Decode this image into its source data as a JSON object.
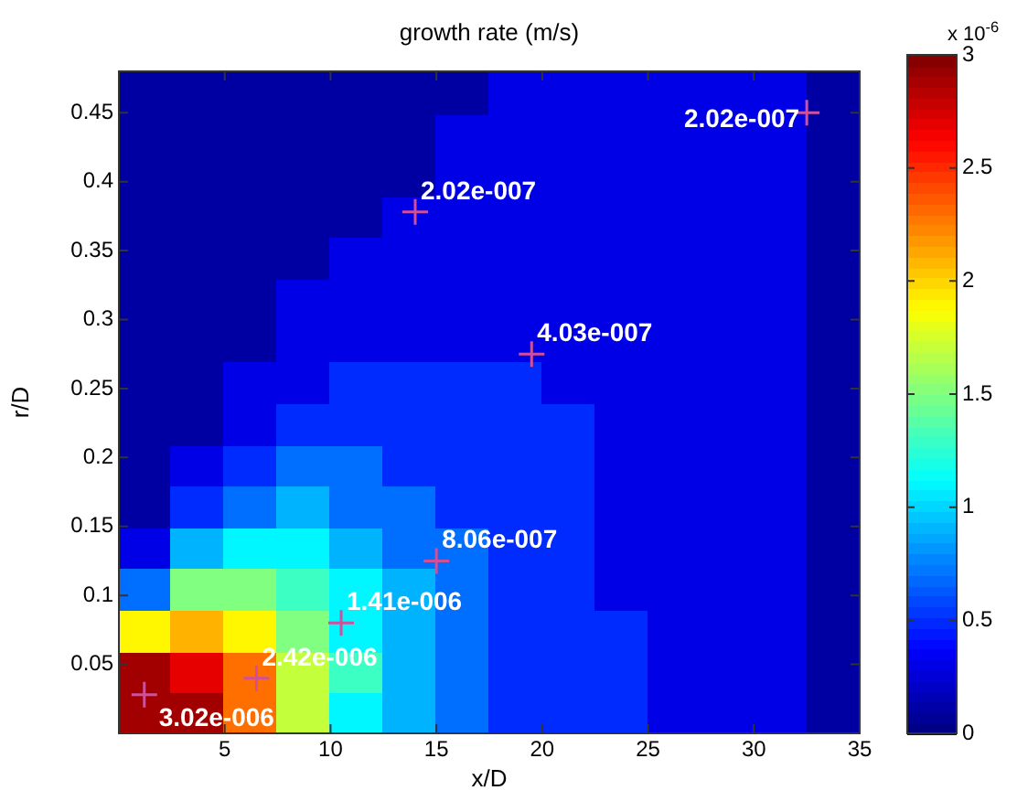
{
  "chart_data": {
    "type": "scatter",
    "title": "growth rate (m/s)",
    "xlabel": "x/D",
    "ylabel": "r/D",
    "clabel": "x 10$^{-6}$",
    "legend": false,
    "grid": false,
    "xlim": [
      0,
      35
    ],
    "xticks": [
      5,
      10,
      15,
      20,
      25,
      30,
      35
    ],
    "ylim": [
      0,
      0.48
    ],
    "yticks": [
      0.05,
      0.1,
      0.15,
      0.2,
      0.25,
      0.3,
      0.35,
      0.4,
      0.45
    ],
    "clim": [
      0,
      3
    ],
    "cticks": [
      0,
      0.5,
      1,
      1.5,
      2,
      2.5,
      3
    ],
    "series": [
      {
        "marker": "square",
        "x": [
          1.25,
          3.75,
          6.25,
          8.75,
          11.25,
          13.75,
          16.25,
          18.75,
          21.25,
          23.75,
          26.25,
          28.75,
          31.25,
          33.75,
          1.25,
          3.75,
          6.25,
          8.75,
          11.25,
          13.75,
          16.25,
          18.75,
          21.25,
          23.75,
          26.25,
          28.75,
          31.25,
          33.75,
          1.25,
          3.75,
          6.25,
          8.75,
          11.25,
          13.75,
          16.25,
          18.75,
          21.25,
          23.75,
          26.25,
          28.75,
          31.25,
          33.75,
          1.25,
          3.75,
          6.25,
          8.75,
          11.25,
          13.75,
          16.25,
          18.75,
          21.25,
          23.75,
          26.25,
          28.75,
          31.25,
          33.75,
          1.25,
          3.75,
          6.25,
          8.75,
          11.25,
          13.75,
          16.25,
          18.75,
          21.25,
          23.75,
          26.25,
          28.75,
          31.25,
          33.75,
          1.25,
          3.75,
          6.25,
          8.75,
          11.25,
          13.75,
          16.25,
          18.75,
          21.25,
          23.75,
          26.25,
          28.75,
          31.25,
          33.75,
          1.25,
          3.75,
          6.25,
          8.75,
          11.25,
          13.75,
          16.25,
          18.75,
          21.25,
          23.75,
          26.25,
          28.75,
          31.25,
          33.75,
          1.25,
          3.75,
          6.25,
          8.75,
          11.25,
          13.75,
          16.25,
          18.75,
          21.25,
          23.75,
          26.25,
          28.75,
          31.25,
          33.75,
          1.25,
          3.75,
          6.25,
          8.75,
          11.25,
          13.75,
          16.25,
          18.75,
          21.25,
          23.75,
          26.25,
          28.75,
          31.25,
          33.75,
          1.25,
          3.75,
          6.25,
          8.75,
          11.25,
          13.75,
          16.25,
          18.75,
          21.25,
          23.75,
          26.25,
          28.75,
          31.25,
          33.75,
          1.25,
          3.75,
          6.25,
          8.75,
          11.25,
          13.75,
          16.25,
          18.75,
          21.25,
          23.75,
          26.25,
          28.75,
          31.25,
          33.75,
          1.25,
          3.75,
          6.25,
          8.75,
          11.25,
          13.75,
          16.25,
          18.75,
          21.25,
          23.75,
          26.25,
          28.75,
          31.25,
          33.75,
          1.25,
          3.75,
          6.25,
          8.75,
          11.25,
          13.75,
          16.25,
          18.75,
          21.25,
          23.75,
          26.25,
          28.75,
          31.25,
          33.75,
          1.25,
          3.75,
          6.25,
          8.75,
          11.25,
          13.75,
          16.25,
          18.75,
          21.25,
          23.75,
          26.25,
          28.75,
          31.25,
          33.75,
          1.25,
          3.75,
          6.25,
          8.75,
          11.25,
          13.75,
          16.25,
          18.75,
          21.25,
          23.75,
          26.25,
          28.75,
          31.25,
          33.75,
          1.25,
          3.75,
          6.25,
          8.75,
          11.25,
          13.75,
          16.25,
          18.75,
          21.25,
          23.75,
          26.25,
          28.75,
          31.25,
          33.75
        ],
        "values": [
          0.015,
          0.015,
          0.015,
          0.015,
          0.015,
          0.015,
          0.015,
          0.015,
          0.015,
          0.015,
          0.015,
          0.015,
          0.015,
          0.015,
          0.045,
          0.045,
          0.045,
          0.045,
          0.045,
          0.045,
          0.045,
          0.045,
          0.045,
          0.045,
          0.045,
          0.045,
          0.045,
          0.045,
          0.075,
          0.075,
          0.075,
          0.075,
          0.075,
          0.075,
          0.075,
          0.075,
          0.075,
          0.075,
          0.075,
          0.075,
          0.075,
          0.075,
          0.105,
          0.105,
          0.105,
          0.105,
          0.105,
          0.105,
          0.105,
          0.105,
          0.105,
          0.105,
          0.105,
          0.105,
          0.105,
          0.105,
          0.135,
          0.135,
          0.135,
          0.135,
          0.135,
          0.135,
          0.135,
          0.135,
          0.135,
          0.135,
          0.135,
          0.135,
          0.135,
          0.135,
          0.165,
          0.165,
          0.165,
          0.165,
          0.165,
          0.165,
          0.165,
          0.165,
          0.165,
          0.165,
          0.165,
          0.165,
          0.165,
          0.165,
          0.195,
          0.195,
          0.195,
          0.195,
          0.195,
          0.195,
          0.195,
          0.195,
          0.195,
          0.195,
          0.195,
          0.195,
          0.195,
          0.195,
          0.225,
          0.225,
          0.225,
          0.225,
          0.225,
          0.225,
          0.225,
          0.225,
          0.225,
          0.225,
          0.225,
          0.225,
          0.225,
          0.225,
          0.255,
          0.255,
          0.255,
          0.255,
          0.255,
          0.255,
          0.255,
          0.255,
          0.255,
          0.255,
          0.255,
          0.255,
          0.255,
          0.255,
          0.285,
          0.285,
          0.285,
          0.285,
          0.285,
          0.285,
          0.285,
          0.285,
          0.285,
          0.285,
          0.285,
          0.285,
          0.285,
          0.285,
          0.315,
          0.315,
          0.315,
          0.315,
          0.315,
          0.315,
          0.315,
          0.315,
          0.315,
          0.315,
          0.315,
          0.315,
          0.315,
          0.315,
          0.345,
          0.345,
          0.345,
          0.345,
          0.345,
          0.345,
          0.345,
          0.345,
          0.345,
          0.345,
          0.345,
          0.345,
          0.345,
          0.345,
          0.375,
          0.375,
          0.375,
          0.375,
          0.375,
          0.375,
          0.375,
          0.375,
          0.375,
          0.375,
          0.375,
          0.375,
          0.375,
          0.375,
          0.405,
          0.405,
          0.405,
          0.405,
          0.405,
          0.405,
          0.405,
          0.405,
          0.405,
          0.405,
          0.405,
          0.405,
          0.405,
          0.405,
          0.435,
          0.435,
          0.435,
          0.435,
          0.435,
          0.435,
          0.435,
          0.435,
          0.435,
          0.435,
          0.435,
          0.435,
          0.435,
          0.435,
          0.465,
          0.465,
          0.465,
          0.465,
          0.465,
          0.465,
          0.465,
          0.465,
          0.465,
          0.465,
          0.465,
          0.465,
          0.465,
          0.465
        ],
        "cvalues": [
          2.9,
          2.9,
          2.3,
          1.7,
          1.1,
          0.9,
          0.7,
          0.5,
          0.5,
          0.5,
          0.3,
          0.3,
          0.3,
          0.1,
          2.9,
          2.7,
          2.3,
          1.7,
          1.3,
          0.9,
          0.7,
          0.5,
          0.5,
          0.5,
          0.3,
          0.3,
          0.3,
          0.1,
          1.9,
          2.1,
          1.9,
          1.5,
          1.1,
          0.9,
          0.7,
          0.5,
          0.5,
          0.5,
          0.3,
          0.3,
          0.3,
          0.1,
          0.7,
          1.5,
          1.5,
          1.3,
          1.1,
          0.9,
          0.7,
          0.5,
          0.5,
          0.3,
          0.3,
          0.3,
          0.3,
          0.1,
          0.3,
          0.9,
          1.1,
          1.1,
          0.9,
          0.7,
          0.7,
          0.5,
          0.5,
          0.3,
          0.3,
          0.3,
          0.3,
          0.1,
          0.1,
          0.5,
          0.7,
          0.9,
          0.7,
          0.7,
          0.5,
          0.5,
          0.5,
          0.3,
          0.3,
          0.3,
          0.3,
          0.1,
          0.1,
          0.3,
          0.5,
          0.7,
          0.7,
          0.5,
          0.5,
          0.5,
          0.5,
          0.3,
          0.3,
          0.3,
          0.3,
          0.1,
          0.1,
          0.1,
          0.3,
          0.5,
          0.5,
          0.5,
          0.5,
          0.5,
          0.5,
          0.3,
          0.3,
          0.3,
          0.3,
          0.1,
          0.1,
          0.1,
          0.3,
          0.3,
          0.5,
          0.5,
          0.5,
          0.5,
          0.3,
          0.3,
          0.3,
          0.3,
          0.3,
          0.1,
          0.1,
          0.1,
          0.1,
          0.3,
          0.3,
          0.3,
          0.3,
          0.3,
          0.3,
          0.3,
          0.3,
          0.3,
          0.3,
          0.1,
          0.1,
          0.1,
          0.1,
          0.3,
          0.3,
          0.3,
          0.3,
          0.3,
          0.3,
          0.3,
          0.3,
          0.3,
          0.3,
          0.1,
          0.1,
          0.1,
          0.1,
          0.1,
          0.3,
          0.3,
          0.3,
          0.3,
          0.3,
          0.3,
          0.3,
          0.3,
          0.3,
          0.1,
          0.1,
          0.1,
          0.1,
          0.1,
          0.1,
          0.3,
          0.3,
          0.3,
          0.3,
          0.3,
          0.3,
          0.3,
          0.3,
          0.1,
          0.1,
          0.1,
          0.1,
          0.1,
          0.1,
          0.1,
          0.3,
          0.3,
          0.3,
          0.3,
          0.3,
          0.3,
          0.3,
          0.1,
          0.1,
          0.1,
          0.1,
          0.1,
          0.1,
          0.1,
          0.3,
          0.3,
          0.3,
          0.3,
          0.3,
          0.3,
          0.3,
          0.1,
          0.1,
          0.1,
          0.1,
          0.1,
          0.1,
          0.1,
          0.1,
          0.3,
          0.3,
          0.3,
          0.3,
          0.3,
          0.3,
          0.1
        ],
        "colors": [
          "#a10000",
          "#a10000",
          "#ff6e00",
          "#c4ff3b",
          "#00f7ff",
          "#00b3ff",
          "#006eff",
          "#002bff",
          "#002bff",
          "#002bff",
          "#0000e6",
          "#0000e6",
          "#0000e6",
          "#0000a1",
          "#a10000",
          "#e60000",
          "#ff6e00",
          "#c4ff3b",
          "#3bffc4",
          "#00b3ff",
          "#006eff",
          "#002bff",
          "#002bff",
          "#002bff",
          "#0000e6",
          "#0000e6",
          "#0000e6",
          "#0000a1",
          "#fff700",
          "#ffb300",
          "#fff700",
          "#80ff80",
          "#00f7ff",
          "#00b3ff",
          "#006eff",
          "#002bff",
          "#002bff",
          "#002bff",
          "#0000e6",
          "#0000e6",
          "#0000e6",
          "#0000a1",
          "#006eff",
          "#80ff80",
          "#80ff80",
          "#3bffc4",
          "#00f7ff",
          "#00b3ff",
          "#006eff",
          "#002bff",
          "#002bff",
          "#0000e6",
          "#0000e6",
          "#0000e6",
          "#0000e6",
          "#0000a1",
          "#0000e6",
          "#00b3ff",
          "#00f7ff",
          "#00f7ff",
          "#00b3ff",
          "#006eff",
          "#006eff",
          "#002bff",
          "#002bff",
          "#0000e6",
          "#0000e6",
          "#0000e6",
          "#0000e6",
          "#0000a1",
          "#0000a1",
          "#002bff",
          "#006eff",
          "#00b3ff",
          "#006eff",
          "#006eff",
          "#002bff",
          "#002bff",
          "#002bff",
          "#0000e6",
          "#0000e6",
          "#0000e6",
          "#0000e6",
          "#0000a1",
          "#0000a1",
          "#0000e6",
          "#002bff",
          "#006eff",
          "#006eff",
          "#002bff",
          "#002bff",
          "#002bff",
          "#002bff",
          "#0000e6",
          "#0000e6",
          "#0000e6",
          "#0000e6",
          "#0000a1",
          "#0000a1",
          "#0000a1",
          "#0000e6",
          "#002bff",
          "#002bff",
          "#002bff",
          "#002bff",
          "#002bff",
          "#002bff",
          "#0000e6",
          "#0000e6",
          "#0000e6",
          "#0000e6",
          "#0000a1",
          "#0000a1",
          "#0000a1",
          "#0000e6",
          "#0000e6",
          "#002bff",
          "#002bff",
          "#002bff",
          "#002bff",
          "#0000e6",
          "#0000e6",
          "#0000e6",
          "#0000e6",
          "#0000e6",
          "#0000a1",
          "#0000a1",
          "#0000a1",
          "#0000a1",
          "#0000e6",
          "#0000e6",
          "#0000e6",
          "#0000e6",
          "#0000e6",
          "#0000e6",
          "#0000e6",
          "#0000e6",
          "#0000e6",
          "#0000e6",
          "#0000a1",
          "#0000a1",
          "#0000a1",
          "#0000a1",
          "#0000e6",
          "#0000e6",
          "#0000e6",
          "#0000e6",
          "#0000e6",
          "#0000e6",
          "#0000e6",
          "#0000e6",
          "#0000e6",
          "#0000e6",
          "#0000a1",
          "#0000a1",
          "#0000a1",
          "#0000a1",
          "#0000a1",
          "#0000e6",
          "#0000e6",
          "#0000e6",
          "#0000e6",
          "#0000e6",
          "#0000e6",
          "#0000e6",
          "#0000e6",
          "#0000e6",
          "#0000a1",
          "#0000a1",
          "#0000a1",
          "#0000a1",
          "#0000a1",
          "#0000a1",
          "#0000e6",
          "#0000e6",
          "#0000e6",
          "#0000e6",
          "#0000e6",
          "#0000e6",
          "#0000e6",
          "#0000e6",
          "#0000a1",
          "#0000a1",
          "#0000a1",
          "#0000a1",
          "#0000a1",
          "#0000a1",
          "#0000a1",
          "#0000e6",
          "#0000e6",
          "#0000e6",
          "#0000e6",
          "#0000e6",
          "#0000e6",
          "#0000e6",
          "#0000a1",
          "#0000a1",
          "#0000a1",
          "#0000a1",
          "#0000a1",
          "#0000a1",
          "#0000a1",
          "#0000e6",
          "#0000e6",
          "#0000e6",
          "#0000e6",
          "#0000e6",
          "#0000e6",
          "#0000e6",
          "#0000a1",
          "#0000a1",
          "#0000a1",
          "#0000a1",
          "#0000a1",
          "#0000a1",
          "#0000a1",
          "#0000a1",
          "#0000e6",
          "#0000e6",
          "#0000e6",
          "#0000e6",
          "#0000e6",
          "#0000e6",
          "#0000a1"
        ]
      },
      {
        "marker": "cross",
        "color": "#d0509a",
        "x": [
          1.2,
          6.5,
          10.5,
          15,
          19.5,
          14,
          32.5
        ],
        "values": [
          0.028,
          0.04,
          0.08,
          0.125,
          0.275,
          0.378,
          0.45
        ]
      }
    ],
    "annotations": [
      {
        "text": "3.02e-006",
        "x": 1.2,
        "y": 0.028
      },
      {
        "text": "2.42e-006",
        "x": 6.5,
        "y": 0.04
      },
      {
        "text": "1.41e-006",
        "x": 10.5,
        "y": 0.08
      },
      {
        "text": "8.06e-007",
        "x": 15,
        "y": 0.125
      },
      {
        "text": "4.03e-007",
        "x": 19.5,
        "y": 0.275
      },
      {
        "text": "2.02e-007",
        "x": 14,
        "y": 0.378
      },
      {
        "text": "2.02e-007",
        "x": 32.5,
        "y": 0.45
      }
    ]
  }
}
